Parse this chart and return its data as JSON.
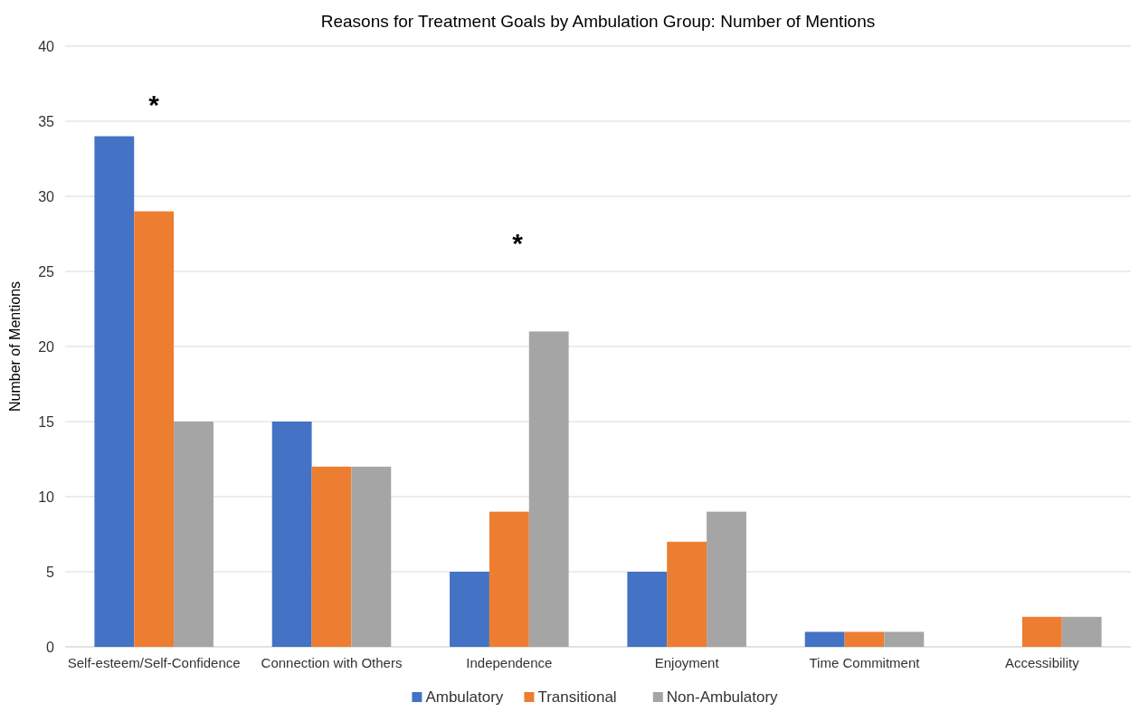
{
  "chart_data": {
    "type": "bar",
    "title": "Reasons for Treatment Goals by Ambulation Group: Number of Mentions",
    "ylabel": "Number of Mentions",
    "categories": [
      "Self-esteem/Self-Confidence",
      "Connection with Others",
      "Independence",
      "Enjoyment",
      "Time Commitment",
      "Accessibility"
    ],
    "series": [
      {
        "name": "Ambulatory",
        "color": "#4472c4",
        "values": [
          34,
          15,
          5,
          5,
          1,
          0
        ]
      },
      {
        "name": "Transitional",
        "color": "#ed7d31",
        "values": [
          29,
          12,
          9,
          7,
          1,
          2
        ]
      },
      {
        "name": "Non-Ambulatory",
        "color": "#a5a5a5",
        "values": [
          15,
          12,
          21,
          9,
          1,
          2
        ]
      }
    ],
    "ylim": [
      0,
      40
    ],
    "yticks": [
      0,
      5,
      10,
      15,
      20,
      25,
      30,
      35,
      40
    ],
    "grid": "y",
    "legend": "bottom",
    "annotations": [
      "*",
      "*"
    ]
  }
}
